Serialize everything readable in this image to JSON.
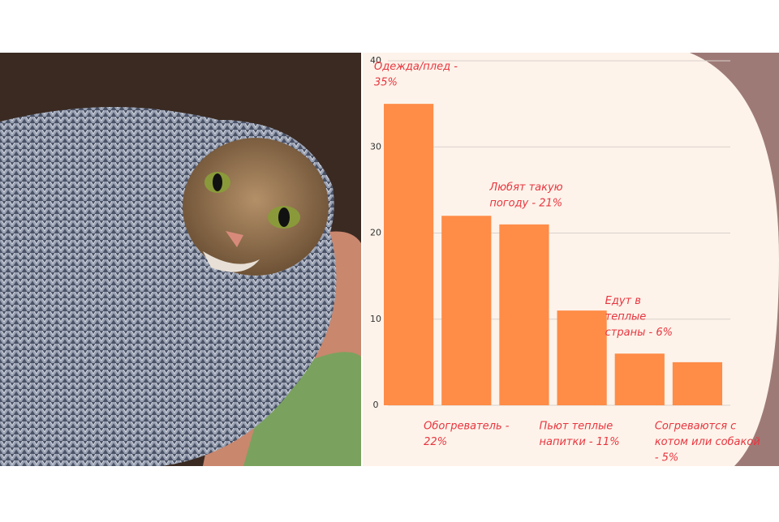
{
  "chart_data": {
    "type": "bar",
    "values": [
      35,
      22,
      21,
      11,
      6,
      5
    ],
    "value_labels": [
      [
        "Одежда/плед -",
        "35%"
      ],
      [
        "Обогреватель -",
        "22%"
      ],
      [
        "Любят такую",
        "погоду - 21%"
      ],
      [
        "Пьют теплые",
        "напитки - 11%"
      ],
      [
        "Едут в",
        "теплые",
        "страны - 6%"
      ],
      [
        "Согреваются с",
        "котом или собакой",
        "- 5%"
      ]
    ],
    "color": "#ff8c47",
    "label_color": "#e8353f",
    "ylim": [
      0,
      40
    ],
    "yticks": [
      0,
      10,
      20,
      30,
      40
    ],
    "grid": true
  }
}
